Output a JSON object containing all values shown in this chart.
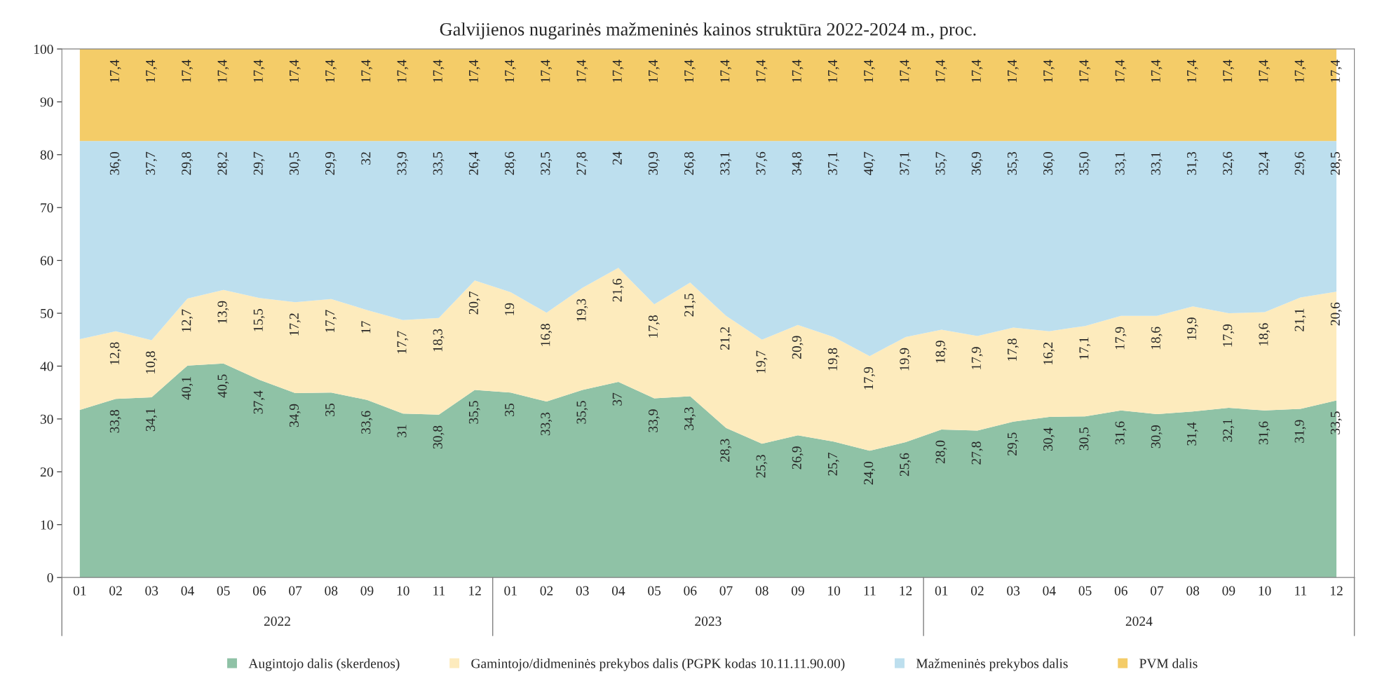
{
  "chart_data": {
    "type": "area",
    "stacked": true,
    "title": "Galvijienos nugarinės mažmeninės kainos struktūra 2022-2024 m., proc.",
    "categories": [
      "01",
      "02",
      "03",
      "04",
      "05",
      "06",
      "07",
      "08",
      "09",
      "10",
      "11",
      "12",
      "01",
      "02",
      "03",
      "04",
      "05",
      "06",
      "07",
      "08",
      "09",
      "10",
      "11",
      "12",
      "01",
      "02",
      "03",
      "04",
      "05",
      "06",
      "07",
      "08",
      "09",
      "10",
      "11",
      "12"
    ],
    "annotations": [
      "2022",
      "2023",
      "2024"
    ],
    "series": [
      {
        "name": "Augintojo dalis (skerdenos)",
        "color": "#8fc2a6",
        "values": [
          31.7,
          33.8,
          34.1,
          40.1,
          40.5,
          37.4,
          34.9,
          35,
          33.6,
          31,
          30.8,
          35.5,
          35,
          33.3,
          35.5,
          37,
          33.9,
          34.3,
          28.3,
          25.3,
          26.9,
          25.7,
          24.0,
          25.6,
          28.0,
          27.8,
          29.5,
          30.4,
          30.5,
          31.6,
          30.9,
          31.4,
          32.1,
          31.6,
          31.9,
          33.5
        ],
        "value_labels": [
          null,
          "33,8",
          "34,1",
          "40,1",
          "40,5",
          "37,4",
          "34,9",
          "35",
          "33,6",
          "31",
          "30,8",
          "35,5",
          "35",
          "33,3",
          "35,5",
          "37",
          "33,9",
          "34,3",
          "28,3",
          "25,3",
          "26,9",
          "25,7",
          "24,0",
          "25,6",
          "28,0",
          "27,8",
          "29,5",
          "30,4",
          "30,5",
          "31,6",
          "30,9",
          "31,4",
          "32,1",
          "31,6",
          "31,9",
          "33,5"
        ]
      },
      {
        "name": "Gamintojo/didmeninės prekybos dalis (PGPK kodas 10.11.11.90.00)",
        "color": "#fdebbd",
        "values": [
          13.4,
          12.8,
          10.8,
          12.7,
          13.9,
          15.5,
          17.2,
          17.7,
          17,
          17.7,
          18.3,
          20.7,
          19,
          16.8,
          19.3,
          21.6,
          17.8,
          21.5,
          21.2,
          19.7,
          20.9,
          19.8,
          17.9,
          19.9,
          18.9,
          17.9,
          17.8,
          16.2,
          17.1,
          17.9,
          18.6,
          19.9,
          17.9,
          18.6,
          21.1,
          20.6
        ],
        "value_labels": [
          null,
          "12,8",
          "10,8",
          "12,7",
          "13,9",
          "15,5",
          "17,2",
          "17,7",
          "17",
          "17,7",
          "18,3",
          "20,7",
          "19",
          "16,8",
          "19,3",
          "21,6",
          "17,8",
          "21,5",
          "21,2",
          "19,7",
          "20,9",
          "19,8",
          "17,9",
          "19,9",
          "18,9",
          "17,9",
          "17,8",
          "16,2",
          "17,1",
          "17,9",
          "18,6",
          "19,9",
          "17,9",
          "18,6",
          "21,1",
          "20,6"
        ]
      },
      {
        "name": "Mažmeninės prekybos dalis",
        "color": "#bddfee",
        "values": [
          37.5,
          36.0,
          37.7,
          29.8,
          28.2,
          29.7,
          30.5,
          29.9,
          32,
          33.9,
          33.5,
          26.4,
          28.6,
          32.5,
          27.8,
          24,
          30.9,
          26.8,
          33.1,
          37.6,
          34.8,
          37.1,
          40.7,
          37.1,
          35.7,
          36.9,
          35.3,
          36.0,
          35.0,
          33.1,
          33.1,
          31.3,
          32.6,
          32.4,
          29.6,
          28.5
        ],
        "value_labels": [
          null,
          "36,0",
          "37,7",
          "29,8",
          "28,2",
          "29,7",
          "30,5",
          "29,9",
          "32",
          "33,9",
          "33,5",
          "26,4",
          "28,6",
          "32,5",
          "27,8",
          "24",
          "30,9",
          "26,8",
          "33,1",
          "37,6",
          "34,8",
          "37,1",
          "40,7",
          "37,1",
          "35,7",
          "36,9",
          "35,3",
          "36,0",
          "35,0",
          "33,1",
          "33,1",
          "31,3",
          "32,6",
          "32,4",
          "29,6",
          "28,5"
        ]
      },
      {
        "name": "PVM dalis",
        "color": "#f4cc68",
        "values": [
          17.4,
          17.4,
          17.4,
          17.4,
          17.4,
          17.4,
          17.4,
          17.4,
          17.4,
          17.4,
          17.4,
          17.4,
          17.4,
          17.4,
          17.4,
          17.4,
          17.4,
          17.4,
          17.4,
          17.4,
          17.4,
          17.4,
          17.4,
          17.4,
          17.4,
          17.4,
          17.4,
          17.4,
          17.4,
          17.4,
          17.4,
          17.4,
          17.4,
          17.4,
          17.4,
          17.4
        ],
        "value_labels": [
          null,
          "17,4",
          "17,4",
          "17,4",
          "17,4",
          "17,4",
          "17,4",
          "17,4",
          "17,4",
          "17,4",
          "17,4",
          "17,4",
          "17,4",
          "17,4",
          "17,4",
          "17,4",
          "17,4",
          "17,4",
          "17,4",
          "17,4",
          "17,4",
          "17,4",
          "17,4",
          "17,4",
          "17,4",
          "17,4",
          "17,4",
          "17,4",
          "17,4",
          "17,4",
          "17,4",
          "17,4",
          "17,4",
          "17,4",
          "17,4",
          "17,4"
        ]
      }
    ],
    "ylim": [
      0,
      100
    ],
    "yticks": [
      0,
      10,
      20,
      30,
      40,
      50,
      60,
      70,
      80,
      90,
      100
    ],
    "grid": false,
    "legend": "bottom"
  }
}
